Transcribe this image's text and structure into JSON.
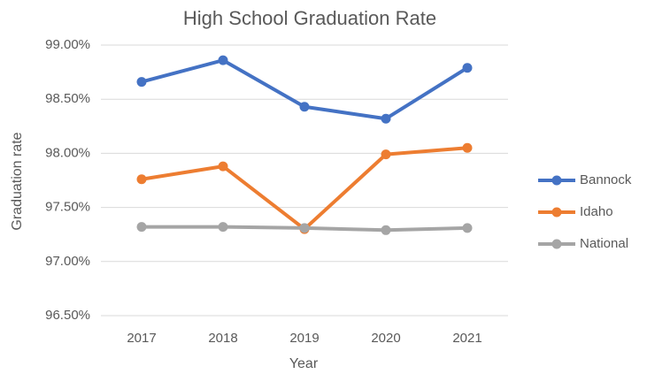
{
  "chart_data": {
    "type": "line",
    "title": "High School Graduation Rate",
    "x_label": "Year",
    "y_label": "Graduation rate",
    "categories": [
      "2017",
      "2018",
      "2019",
      "2020",
      "2021"
    ],
    "series": [
      {
        "name": "Bannock",
        "color": "#4472c4",
        "values": [
          98.66,
          98.86,
          98.43,
          98.32,
          98.79
        ]
      },
      {
        "name": "Idaho",
        "color": "#ed7d31",
        "values": [
          97.76,
          97.88,
          97.3,
          97.99,
          98.05
        ]
      },
      {
        "name": "National",
        "color": "#a5a5a5",
        "values": [
          97.32,
          97.32,
          97.31,
          97.29,
          97.31
        ]
      }
    ],
    "ylim": [
      96.5,
      99
    ],
    "yticks": [
      {
        "value": 96.5,
        "label": "96.50%"
      },
      {
        "value": 97,
        "label": "97.00%"
      },
      {
        "value": 97.5,
        "label": "97.50%"
      },
      {
        "value": 98,
        "label": "98.00%"
      },
      {
        "value": 98.5,
        "label": "98.50%"
      },
      {
        "value": 99,
        "label": "99.00%"
      }
    ],
    "grid": true,
    "legend": "right"
  }
}
